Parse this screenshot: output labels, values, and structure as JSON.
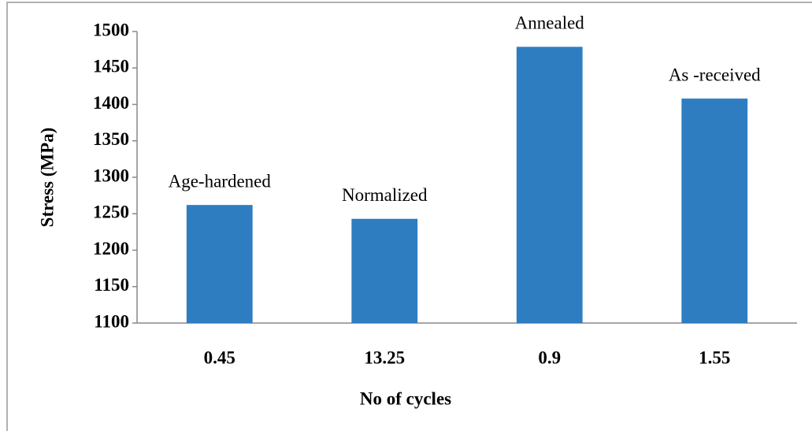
{
  "chart_data": {
    "type": "bar",
    "categories": [
      "0.45",
      "13.25",
      "0.9",
      "1.55"
    ],
    "values": [
      1262,
      1243,
      1479,
      1408
    ],
    "annotations": [
      "Age-hardened",
      "Normalized",
      "Annealed",
      "As -received"
    ],
    "color": "#2e7dc0",
    "x_label": "No of cycles",
    "y_label": "Stress (MPa)",
    "ylim": [
      1100,
      1500
    ],
    "yticks": [
      1100,
      1150,
      1200,
      1250,
      1300,
      1350,
      1400,
      1450,
      1500
    ],
    "grid": false
  }
}
